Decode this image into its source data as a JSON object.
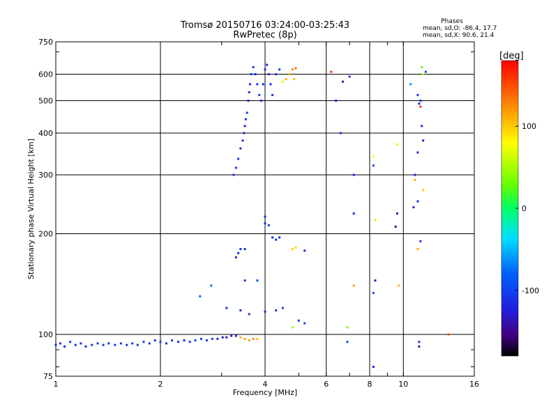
{
  "chart_data": {
    "type": "scatter",
    "title": "Tromsø 20150716 03:24:00-03:25:43",
    "subtitle": "RwPretec (8p)",
    "xlabel": "Frequency [MHz]",
    "ylabel": "Stationary phase Virtual Height [km]",
    "x_scale": "log",
    "y_scale": "log",
    "xlim": [
      1,
      16
    ],
    "ylim": [
      75,
      750
    ],
    "x_ticks": [
      1,
      2,
      4,
      6,
      8,
      10,
      16
    ],
    "x_tick_labels": [
      "1",
      "2",
      "4",
      "6",
      "8",
      "10",
      "16"
    ],
    "y_ticks": [
      75,
      100,
      200,
      300,
      400,
      500,
      600,
      750
    ],
    "y_tick_labels": [
      "75",
      "100",
      "200",
      "300",
      "400",
      "500",
      "600",
      "750"
    ],
    "grid": true,
    "stats": {
      "header": "Phases",
      "line1": "mean, sd,O: -86.4, 17.7",
      "line2": "mean, sd,X:  90.6, 21.4"
    },
    "colorbar": {
      "label": "[deg]",
      "range": [
        -180,
        180
      ],
      "ticks": [
        100,
        0,
        -100
      ],
      "tick_labels": [
        "100",
        "0",
        "-100"
      ]
    },
    "series": [
      {
        "points": [
          [
            1.0,
            93,
            -110
          ],
          [
            1.03,
            94,
            -108
          ],
          [
            1.06,
            92,
            -112
          ],
          [
            1.1,
            95,
            -105
          ],
          [
            1.14,
            93,
            -110
          ],
          [
            1.18,
            94,
            -107
          ],
          [
            1.22,
            92,
            -112
          ],
          [
            1.27,
            93,
            -109
          ],
          [
            1.32,
            94,
            -106
          ],
          [
            1.37,
            93,
            -111
          ],
          [
            1.42,
            94,
            -108
          ],
          [
            1.48,
            93,
            -110
          ],
          [
            1.54,
            94,
            -104
          ],
          [
            1.6,
            93,
            -112
          ],
          [
            1.66,
            94,
            -108
          ],
          [
            1.72,
            93,
            -110
          ],
          [
            1.79,
            95,
            -106
          ],
          [
            1.86,
            94,
            -109
          ],
          [
            1.93,
            96,
            -105
          ],
          [
            2.0,
            95,
            -108
          ],
          [
            2.08,
            94,
            -110
          ],
          [
            2.16,
            96,
            -104
          ],
          [
            2.25,
            95,
            -108
          ],
          [
            2.34,
            96,
            -106
          ],
          [
            2.43,
            95,
            -110
          ],
          [
            2.52,
            96,
            -103
          ],
          [
            2.62,
            97,
            -107
          ],
          [
            2.72,
            96,
            -105
          ],
          [
            2.82,
            97,
            -100
          ],
          [
            2.92,
            97,
            -125
          ],
          [
            3.02,
            98,
            -130
          ],
          [
            3.1,
            98,
            -128
          ],
          [
            3.2,
            99,
            -120
          ],
          [
            3.3,
            99,
            -110
          ],
          [
            3.4,
            98,
            110
          ],
          [
            3.5,
            97,
            120
          ],
          [
            3.6,
            96,
            115
          ],
          [
            3.7,
            97,
            125
          ],
          [
            3.8,
            97,
            108
          ],
          [
            3.25,
            300,
            -115
          ],
          [
            3.3,
            315,
            -112
          ],
          [
            3.35,
            335,
            -110
          ],
          [
            3.4,
            360,
            -115
          ],
          [
            3.45,
            380,
            -112
          ],
          [
            3.48,
            400,
            -118
          ],
          [
            3.5,
            420,
            -115
          ],
          [
            3.52,
            440,
            -112
          ],
          [
            3.55,
            460,
            -110
          ],
          [
            3.58,
            500,
            -118
          ],
          [
            3.6,
            530,
            -115
          ],
          [
            3.62,
            560,
            -112
          ],
          [
            3.65,
            600,
            -110
          ],
          [
            3.7,
            630,
            -105
          ],
          [
            3.75,
            600,
            -115
          ],
          [
            3.8,
            560,
            -112
          ],
          [
            3.85,
            520,
            -110
          ],
          [
            3.9,
            500,
            -115
          ],
          [
            3.95,
            560,
            -118
          ],
          [
            4.0,
            620,
            -112
          ],
          [
            4.05,
            640,
            -110
          ],
          [
            4.1,
            600,
            -115
          ],
          [
            4.15,
            560,
            -112
          ],
          [
            4.2,
            520,
            -108
          ],
          [
            4.3,
            600,
            -105
          ],
          [
            4.4,
            620,
            -100
          ],
          [
            4.5,
            570,
            60
          ],
          [
            4.6,
            580,
            110
          ],
          [
            4.7,
            600,
            115
          ],
          [
            4.8,
            620,
            125
          ],
          [
            4.85,
            580,
            105
          ],
          [
            4.9,
            625,
            140
          ],
          [
            3.3,
            170,
            -115
          ],
          [
            3.35,
            175,
            -112
          ],
          [
            3.4,
            180,
            -110
          ],
          [
            3.5,
            180,
            -115
          ],
          [
            4.0,
            225,
            -110
          ],
          [
            4.0,
            215,
            -112
          ],
          [
            4.1,
            212,
            -108
          ],
          [
            4.2,
            195,
            -115
          ],
          [
            4.3,
            192,
            -110
          ],
          [
            4.4,
            195,
            -112
          ],
          [
            4.8,
            180,
            100
          ],
          [
            4.9,
            182,
            95
          ],
          [
            5.2,
            178,
            -120
          ],
          [
            2.6,
            130,
            -80
          ],
          [
            2.8,
            140,
            -75
          ],
          [
            3.1,
            120,
            -110
          ],
          [
            3.4,
            118,
            -112
          ],
          [
            3.6,
            115,
            -108
          ],
          [
            4.0,
            117,
            -112
          ],
          [
            4.3,
            118,
            -110
          ],
          [
            4.5,
            120,
            -100
          ],
          [
            5.0,
            110,
            -115
          ],
          [
            5.2,
            108,
            -100
          ],
          [
            3.5,
            145,
            -110
          ],
          [
            3.8,
            145,
            -90
          ],
          [
            4.8,
            105,
            50
          ],
          [
            6.2,
            610,
            160
          ],
          [
            6.7,
            570,
            -120
          ],
          [
            7.0,
            590,
            -110
          ],
          [
            6.4,
            500,
            -120
          ],
          [
            6.6,
            400,
            -115
          ],
          [
            7.2,
            300,
            -118
          ],
          [
            7.2,
            230,
            -110
          ],
          [
            8.2,
            340,
            80
          ],
          [
            8.2,
            320,
            -90
          ],
          [
            8.3,
            220,
            60
          ],
          [
            9.6,
            370,
            90
          ],
          [
            9.6,
            230,
            -130
          ],
          [
            9.5,
            210,
            -150
          ],
          [
            10.5,
            560,
            -60
          ],
          [
            11.0,
            520,
            -110
          ],
          [
            11.1,
            490,
            -120
          ],
          [
            11.3,
            630,
            20
          ],
          [
            11.4,
            600,
            50
          ],
          [
            11.2,
            480,
            160
          ],
          [
            11.3,
            420,
            -110
          ],
          [
            11.4,
            380,
            -120
          ],
          [
            11.0,
            350,
            -110
          ],
          [
            10.8,
            300,
            -120
          ],
          [
            10.8,
            290,
            110
          ],
          [
            11.4,
            270,
            100
          ],
          [
            11.0,
            250,
            -110
          ],
          [
            10.7,
            240,
            -115
          ],
          [
            11.2,
            190,
            -110
          ],
          [
            11.0,
            180,
            110
          ],
          [
            7.2,
            140,
            120
          ],
          [
            8.3,
            145,
            -130
          ],
          [
            9.7,
            140,
            110
          ],
          [
            8.2,
            133,
            -90
          ],
          [
            6.9,
            105,
            40
          ],
          [
            6.9,
            95,
            -90
          ],
          [
            11.1,
            95,
            -110
          ],
          [
            11.1,
            92,
            -140
          ],
          [
            8.2,
            80,
            -130
          ],
          [
            13.5,
            100,
            150
          ],
          [
            11.2,
            500,
            -110
          ],
          [
            11.6,
            610,
            -100
          ]
        ]
      }
    ]
  }
}
